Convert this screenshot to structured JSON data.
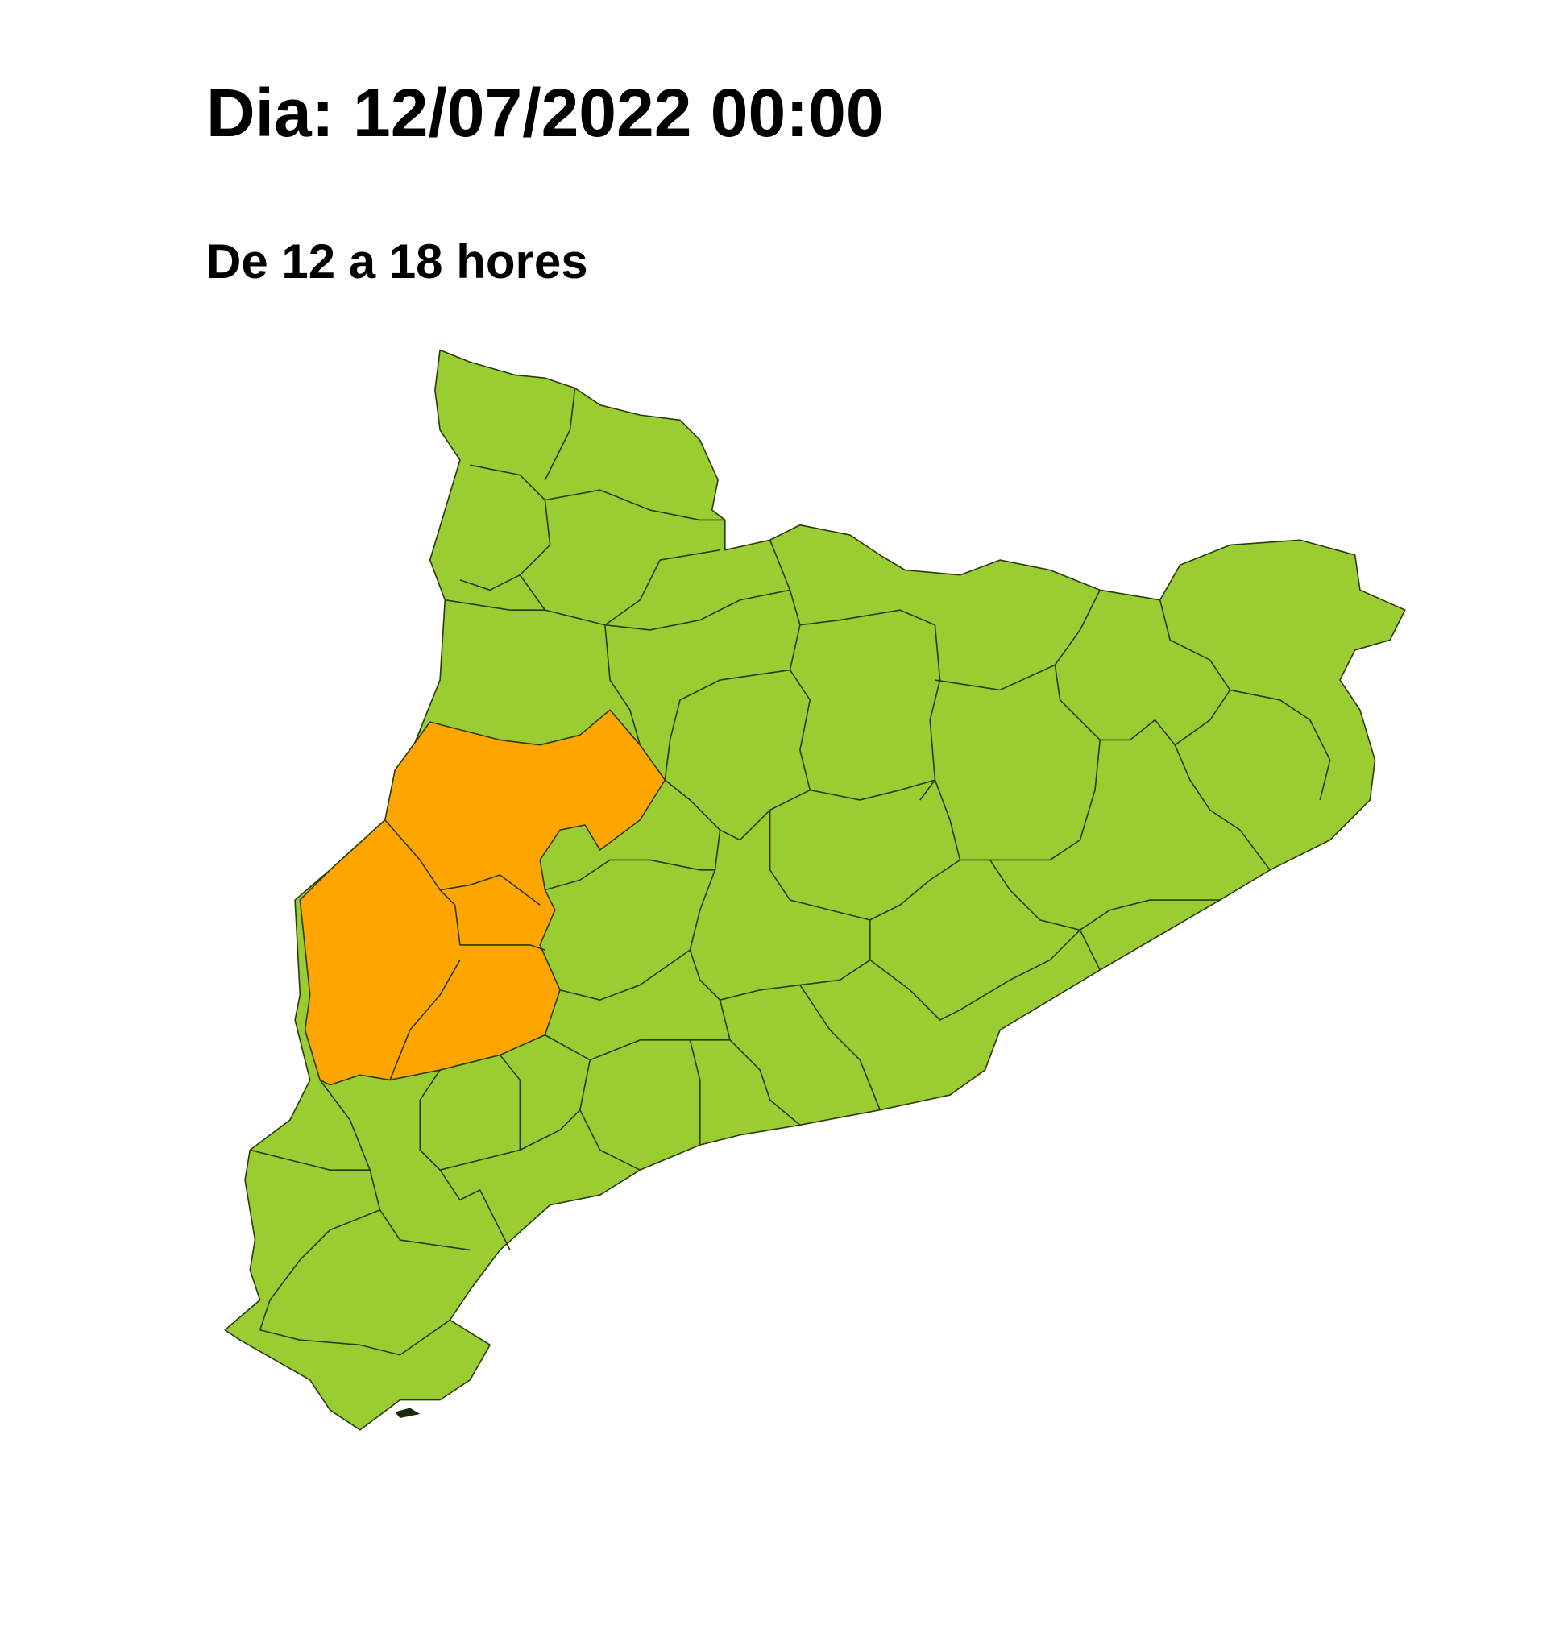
{
  "header": {
    "title": "Dia: 12/07/2022 00:00",
    "subtitle": "De 12 a 18 hores"
  },
  "map": {
    "region": "Catalonia",
    "colors": {
      "low_level": "#9acd32",
      "elevated_level": "#ffa500"
    }
  }
}
